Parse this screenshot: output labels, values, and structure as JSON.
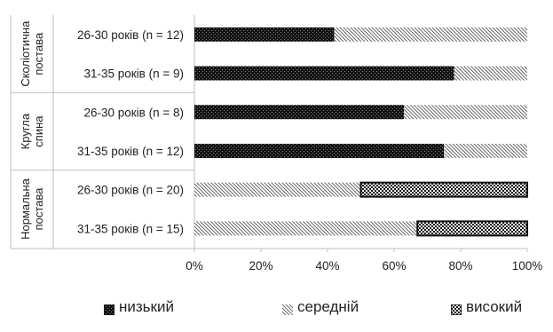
{
  "chart_data": {
    "type": "bar",
    "orientation": "horizontal",
    "stacked": "percent",
    "groups": [
      {
        "label": "Сколіотична постава",
        "rows": [
          {
            "label": "26-30 років (n = 12)",
            "values": [
              42,
              58,
              0
            ]
          },
          {
            "label": "31-35 років (n = 9)",
            "values": [
              78,
              22,
              0
            ]
          }
        ]
      },
      {
        "label": "Кругла спина",
        "rows": [
          {
            "label": "26-30 років (n = 8)",
            "values": [
              63,
              37,
              0
            ]
          },
          {
            "label": "31-35 років (n = 12)",
            "values": [
              75,
              25,
              0
            ]
          }
        ]
      },
      {
        "label": "Нормальна постава",
        "rows": [
          {
            "label": "26-30 років (n = 20)",
            "values": [
              0,
              50,
              50
            ]
          },
          {
            "label": "31-35 років (n = 15)",
            "values": [
              0,
              67,
              33
            ]
          }
        ]
      }
    ],
    "series": [
      {
        "name": "низький",
        "pattern": "dark-checker"
      },
      {
        "name": "середній",
        "pattern": "diagonal-hatch"
      },
      {
        "name": "високий",
        "pattern": "checker-bordered"
      }
    ],
    "xticks": [
      "0%",
      "20%",
      "40%",
      "60%",
      "80%",
      "100%"
    ],
    "xlim": [
      0,
      100
    ],
    "legend": "bottom",
    "grid": false,
    "colors": {
      "dark": "#1a1a1a",
      "hatch": "#555555",
      "axis": "#bfbfbf",
      "text": "#222222"
    }
  }
}
